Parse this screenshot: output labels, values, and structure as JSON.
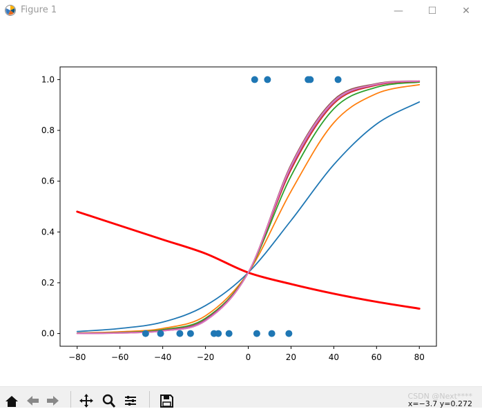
{
  "window": {
    "title": "Figure 1",
    "minimize": "—",
    "maximize": "☐",
    "close": "✕"
  },
  "toolbar": {
    "icons": [
      "home-icon",
      "back-icon",
      "forward-icon",
      "pan-icon",
      "zoom-icon",
      "configure-icon",
      "save-icon"
    ],
    "coords": "x=−3.7 y=0.272",
    "watermark": "CSDN @Next****"
  },
  "chart_data": {
    "type": "line",
    "title": "",
    "xlabel": "",
    "ylabel": "",
    "xlim": [
      -88,
      88
    ],
    "ylim": [
      -0.05,
      1.05
    ],
    "xticks": [
      -80,
      -60,
      -40,
      -20,
      0,
      20,
      40,
      60,
      80
    ],
    "xtick_labels": [
      "−80",
      "−60",
      "−40",
      "−20",
      "0",
      "20",
      "40",
      "60",
      "80"
    ],
    "yticks": [
      0.0,
      0.2,
      0.4,
      0.6,
      0.8,
      1.0
    ],
    "ytick_labels": [
      "0.0",
      "0.2",
      "0.4",
      "0.6",
      "0.8",
      "1.0"
    ],
    "grid": false,
    "scatter": {
      "color": "#1f77b4",
      "x": [
        -48,
        -41,
        -32,
        -27,
        -16,
        -14,
        -9,
        4,
        11,
        19,
        3,
        9,
        28,
        29,
        42
      ],
      "y": [
        0,
        0,
        0,
        0,
        0,
        0,
        0,
        0,
        0,
        0,
        1,
        1,
        1,
        1,
        1
      ]
    },
    "series": [
      {
        "color": "#ff0000",
        "width": 3,
        "points": [
          [
            -80,
            0.48
          ],
          [
            -60,
            0.425
          ],
          [
            -40,
            0.37
          ],
          [
            -20,
            0.315
          ],
          [
            0,
            0.24
          ],
          [
            20,
            0.195
          ],
          [
            40,
            0.157
          ],
          [
            60,
            0.125
          ],
          [
            80,
            0.098
          ]
        ]
      },
      {
        "color": "#1f77b4",
        "width": 1.8,
        "points": [
          [
            -80,
            0.008
          ],
          [
            -60,
            0.02
          ],
          [
            -40,
            0.045
          ],
          [
            -20,
            0.11
          ],
          [
            0,
            0.24
          ],
          [
            20,
            0.445
          ],
          [
            40,
            0.665
          ],
          [
            60,
            0.825
          ],
          [
            80,
            0.912
          ]
        ]
      },
      {
        "color": "#ff7f0e",
        "width": 1.8,
        "points": [
          [
            -80,
            0.002
          ],
          [
            -60,
            0.007
          ],
          [
            -40,
            0.02
          ],
          [
            -20,
            0.07
          ],
          [
            0,
            0.24
          ],
          [
            20,
            0.56
          ],
          [
            40,
            0.83
          ],
          [
            60,
            0.945
          ],
          [
            80,
            0.98
          ]
        ]
      },
      {
        "color": "#2ca02c",
        "width": 1.8,
        "points": [
          [
            -80,
            0.001
          ],
          [
            -60,
            0.004
          ],
          [
            -40,
            0.015
          ],
          [
            -20,
            0.06
          ],
          [
            0,
            0.24
          ],
          [
            20,
            0.62
          ],
          [
            40,
            0.885
          ],
          [
            60,
            0.97
          ],
          [
            80,
            0.99
          ]
        ]
      },
      {
        "color": "#d62728",
        "width": 1.8,
        "points": [
          [
            -80,
            0.001
          ],
          [
            -60,
            0.003
          ],
          [
            -40,
            0.012
          ],
          [
            -20,
            0.055
          ],
          [
            0,
            0.24
          ],
          [
            20,
            0.645
          ],
          [
            40,
            0.905
          ],
          [
            60,
            0.978
          ],
          [
            80,
            0.993
          ]
        ]
      },
      {
        "color": "#9467bd",
        "width": 1.8,
        "points": [
          [
            -80,
            0.001
          ],
          [
            -60,
            0.003
          ],
          [
            -40,
            0.011
          ],
          [
            -20,
            0.053
          ],
          [
            0,
            0.24
          ],
          [
            20,
            0.655
          ],
          [
            40,
            0.912
          ],
          [
            60,
            0.981
          ],
          [
            80,
            0.994
          ]
        ]
      },
      {
        "color": "#8c564b",
        "width": 1.8,
        "points": [
          [
            -80,
            0.0
          ],
          [
            -60,
            0.002
          ],
          [
            -40,
            0.01
          ],
          [
            -20,
            0.05
          ],
          [
            0,
            0.24
          ],
          [
            20,
            0.665
          ],
          [
            40,
            0.92
          ],
          [
            60,
            0.984
          ],
          [
            80,
            0.995
          ]
        ]
      },
      {
        "color": "#e377c2",
        "width": 1.8,
        "points": [
          [
            -80,
            0.0
          ],
          [
            -60,
            0.002
          ],
          [
            -40,
            0.01
          ],
          [
            -20,
            0.05
          ],
          [
            0,
            0.24
          ],
          [
            20,
            0.66
          ],
          [
            40,
            0.915
          ],
          [
            60,
            0.982
          ],
          [
            80,
            0.995
          ]
        ]
      }
    ]
  }
}
